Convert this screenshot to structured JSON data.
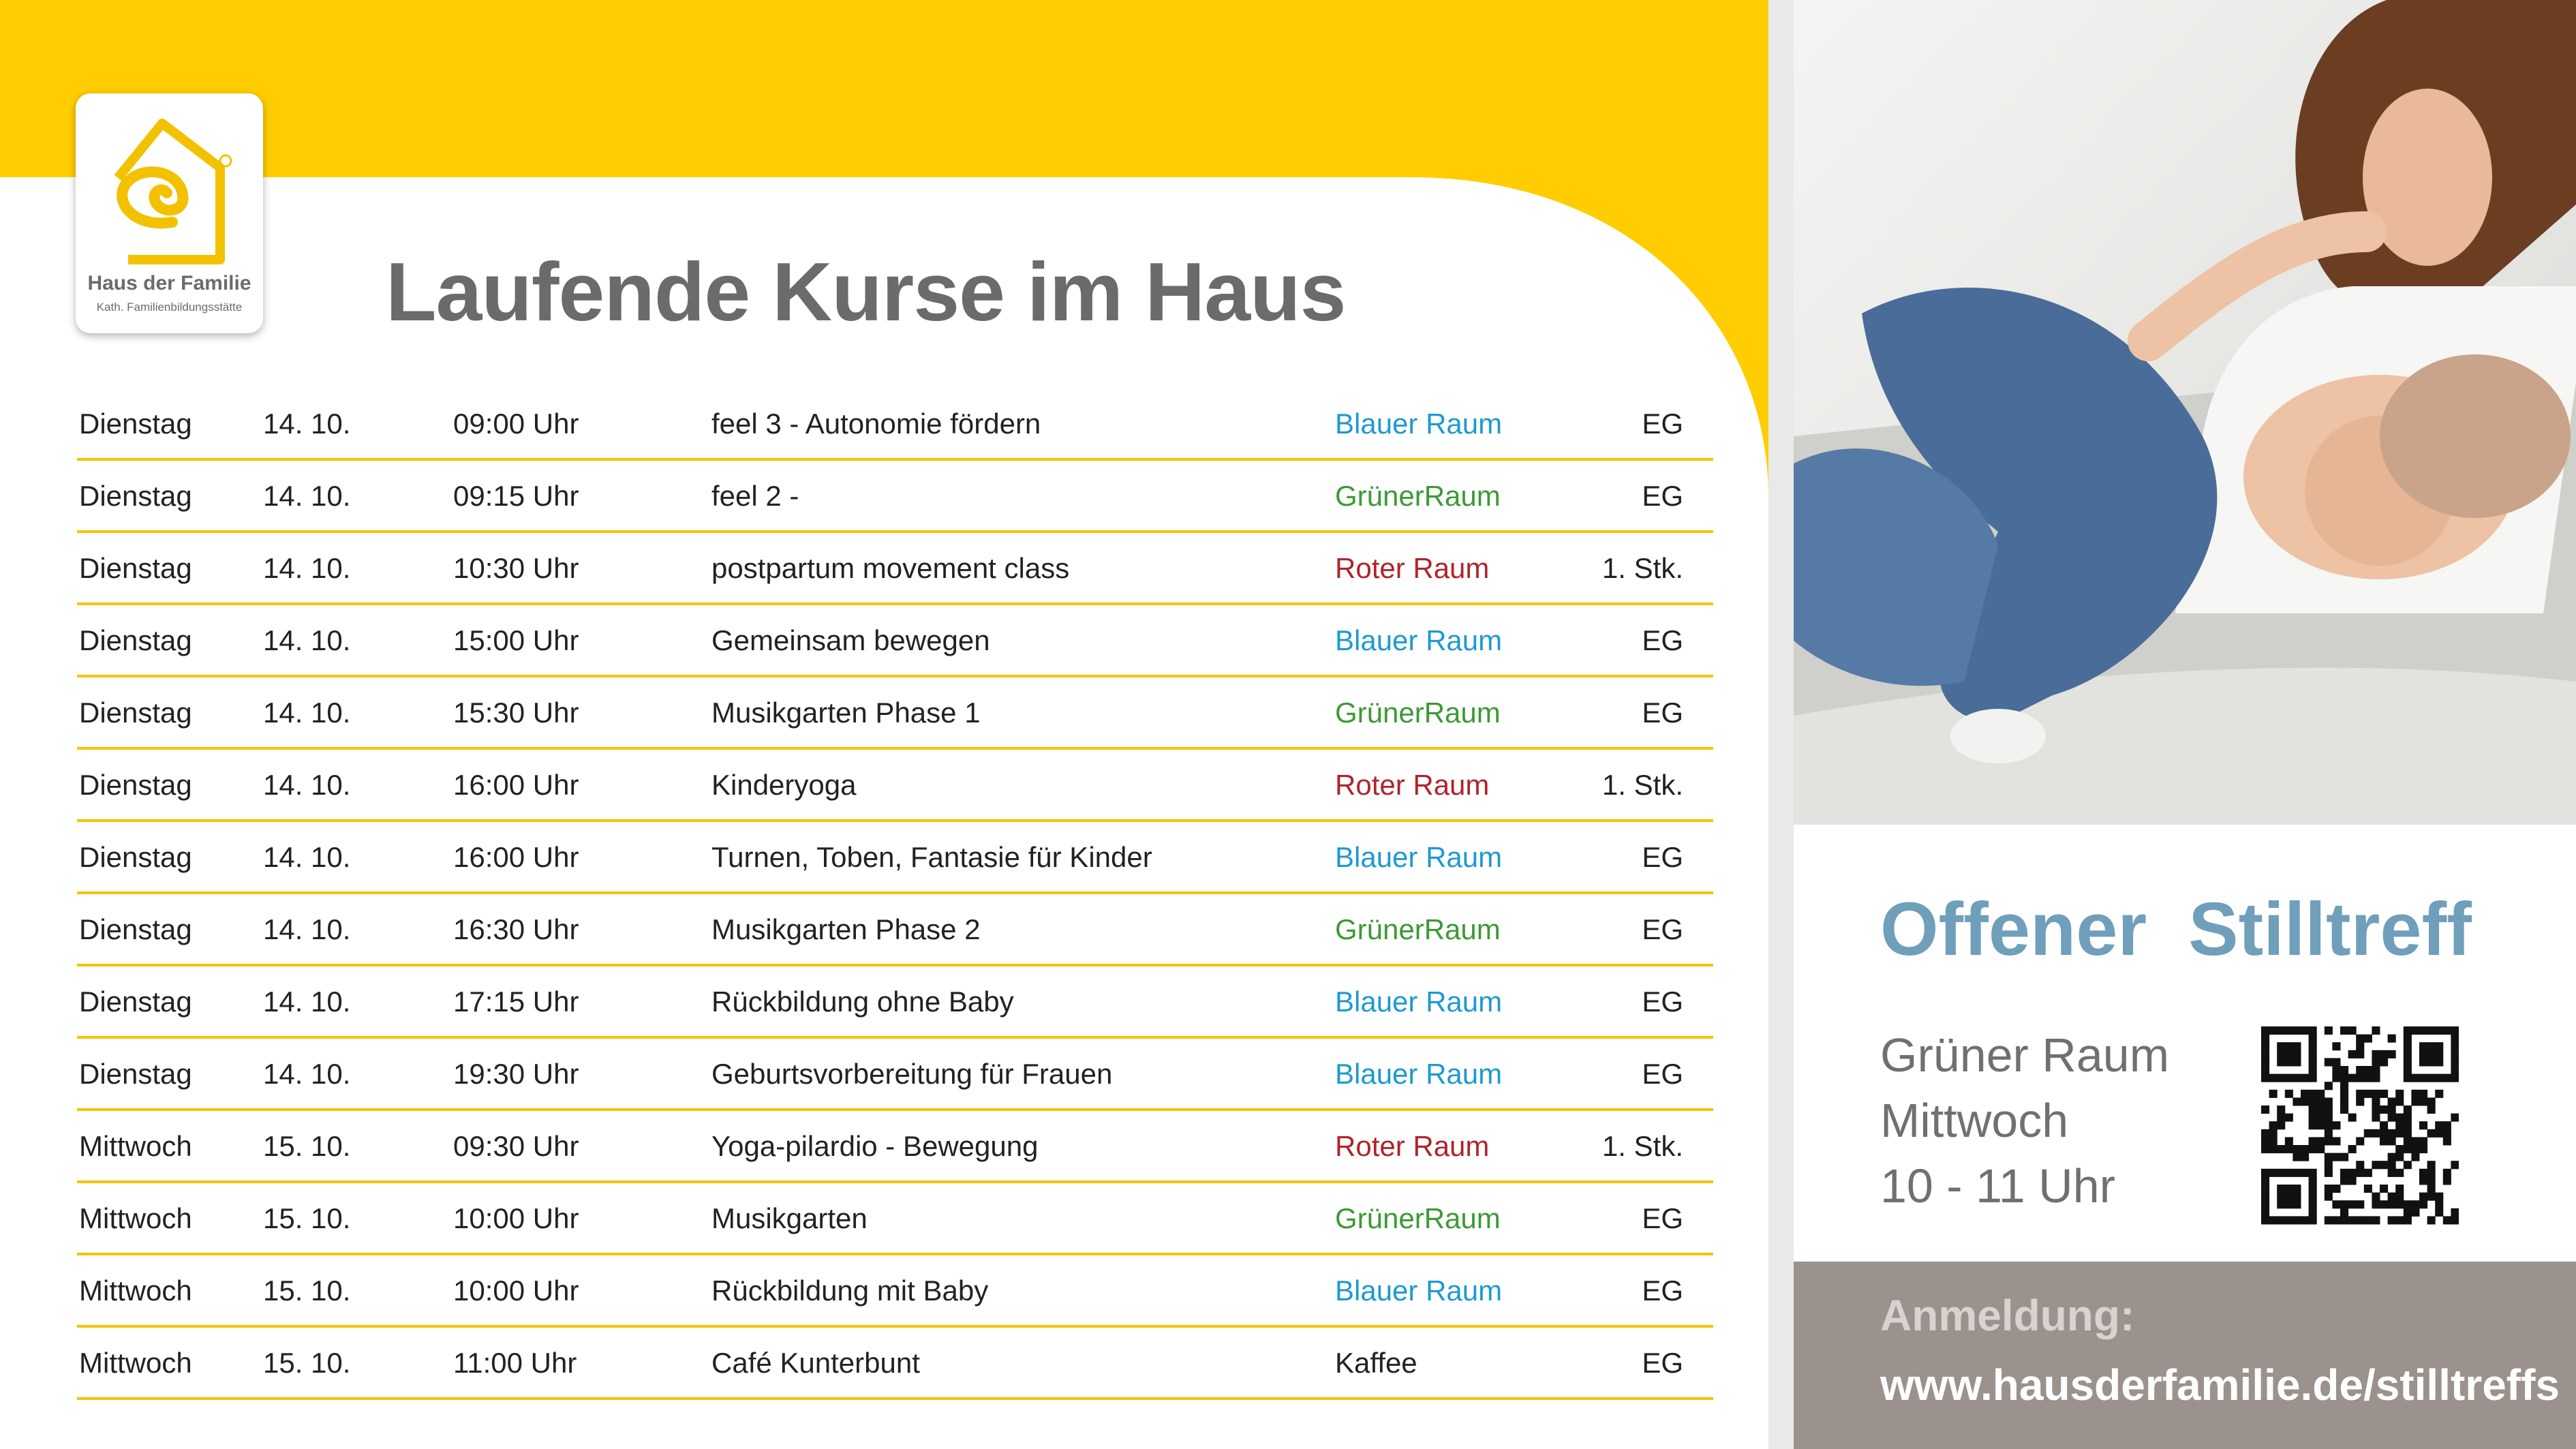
{
  "logo": {
    "name": "Haus der Familie",
    "subtitle": "Kath. Familienbildungsstätte"
  },
  "header": {
    "title": "Laufende Kurse im Haus"
  },
  "table": {
    "rows": [
      {
        "day": "Dienstag",
        "date": "14. 10.",
        "time": "09:00 Uhr",
        "course": "feel 3 - Autonomie fördern",
        "room": "Blauer Raum",
        "room_color": "#1d9ad0",
        "floor": "EG"
      },
      {
        "day": "Dienstag",
        "date": "14. 10.",
        "time": "09:15 Uhr",
        "course": "feel 2 -",
        "room": "GrünerRaum",
        "room_color": "#3c9a35",
        "floor": "EG"
      },
      {
        "day": "Dienstag",
        "date": "14. 10.",
        "time": "10:30 Uhr",
        "course": "postpartum movement class",
        "room": "Roter Raum",
        "room_color": "#b1232b",
        "floor": "1. Stk."
      },
      {
        "day": "Dienstag",
        "date": "14. 10.",
        "time": "15:00 Uhr",
        "course": "Gemeinsam bewegen",
        "room": "Blauer Raum",
        "room_color": "#1d9ad0",
        "floor": "EG"
      },
      {
        "day": "Dienstag",
        "date": "14. 10.",
        "time": "15:30 Uhr",
        "course": "Musikgarten Phase 1",
        "room": "GrünerRaum",
        "room_color": "#3c9a35",
        "floor": "EG"
      },
      {
        "day": "Dienstag",
        "date": "14. 10.",
        "time": "16:00 Uhr",
        "course": "Kinderyoga",
        "room": "Roter Raum",
        "room_color": "#b1232b",
        "floor": "1. Stk."
      },
      {
        "day": "Dienstag",
        "date": "14. 10.",
        "time": "16:00 Uhr",
        "course": "Turnen, Toben, Fantasie für Kinder",
        "room": "Blauer Raum",
        "room_color": "#1d9ad0",
        "floor": "EG"
      },
      {
        "day": "Dienstag",
        "date": "14. 10.",
        "time": "16:30 Uhr",
        "course": "Musikgarten Phase 2",
        "room": "GrünerRaum",
        "room_color": "#3c9a35",
        "floor": "EG"
      },
      {
        "day": "Dienstag",
        "date": "14. 10.",
        "time": "17:15 Uhr",
        "course": "Rückbildung ohne Baby",
        "room": "Blauer Raum",
        "room_color": "#1d9ad0",
        "floor": "EG"
      },
      {
        "day": "Dienstag",
        "date": "14. 10.",
        "time": "19:30 Uhr",
        "course": "Geburtsvorbereitung für Frauen",
        "room": "Blauer Raum",
        "room_color": "#1d9ad0",
        "floor": "EG"
      },
      {
        "day": "Mittwoch",
        "date": "15. 10.",
        "time": "09:30 Uhr",
        "course": "Yoga-pilardio - Bewegung",
        "room": "Roter Raum",
        "room_color": "#b1232b",
        "floor": "1. Stk."
      },
      {
        "day": "Mittwoch",
        "date": "15. 10.",
        "time": "10:00 Uhr",
        "course": "Musikgarten",
        "room": "GrünerRaum",
        "room_color": "#3c9a35",
        "floor": "EG"
      },
      {
        "day": "Mittwoch",
        "date": "15. 10.",
        "time": "10:00 Uhr",
        "course": "Rückbildung mit Baby",
        "room": "Blauer Raum",
        "room_color": "#1d9ad0",
        "floor": "EG"
      },
      {
        "day": "Mittwoch",
        "date": "15. 10.",
        "time": "11:00 Uhr",
        "course": "Café Kunterbunt",
        "room": "Kaffee",
        "room_color": "#222222",
        "floor": "EG"
      }
    ]
  },
  "promo": {
    "title": "Offener  Stilltreff",
    "details": [
      "Grüner Raum",
      "Mittwoch",
      "10 - 11 Uhr"
    ],
    "signup_label": "Anmeldung:",
    "url": "www.hausderfamilie.de/stilltreffs"
  }
}
